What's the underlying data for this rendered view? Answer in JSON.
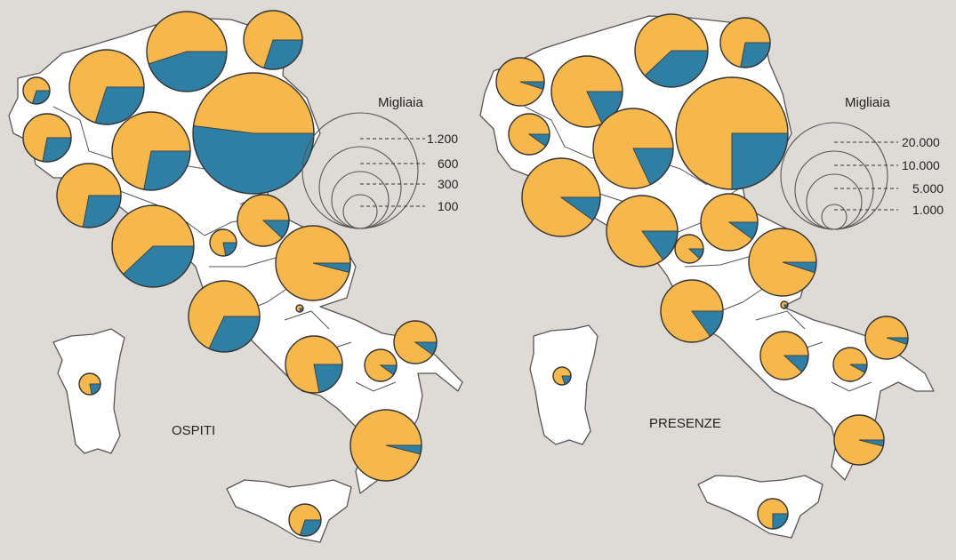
{
  "colors": {
    "background": "#dedbd7",
    "italian": "#f6b84c",
    "foreign": "#2f7ea4",
    "region_fill": "#ffffff"
  },
  "left_map": {
    "title": "OSPITI",
    "legend": {
      "heading": "Migliaia",
      "labels": [
        "1.200",
        "600",
        "300",
        "100"
      ]
    }
  },
  "right_map": {
    "title": "PRESENZE",
    "legend": {
      "heading": "Migliaia",
      "labels": [
        "20.000",
        "10.000",
        "5.000",
        "1.000"
      ]
    }
  }
}
